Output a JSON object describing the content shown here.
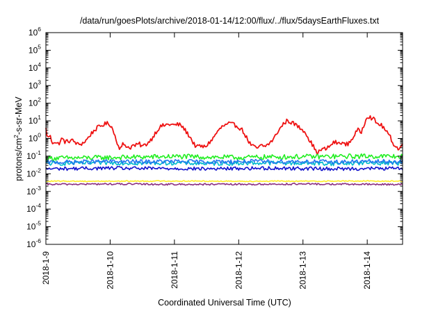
{
  "chart_data": {
    "type": "line",
    "title": "/data/run/goesPlots/archive/2018-01-14/12:00/flux/../flux/5daysEarthFluxes.txt",
    "xlabel": "Coordinated Universal Time (UTC)",
    "ylabel_prefix": "protons/cm",
    "ylabel_sup": "2",
    "ylabel_suffix": "-s-sr-MeV",
    "y_scale": "log",
    "ylim_exp": [
      -6,
      6
    ],
    "y_ticks": [
      {
        "base": "10",
        "exp": "6"
      },
      {
        "base": "10",
        "exp": "5"
      },
      {
        "base": "10",
        "exp": "4"
      },
      {
        "base": "10",
        "exp": "3"
      },
      {
        "base": "10",
        "exp": "2"
      },
      {
        "base": "10",
        "exp": "1"
      },
      {
        "base": "10",
        "exp": "0"
      },
      {
        "base": "10",
        "exp": "-1"
      },
      {
        "base": "10",
        "exp": "-2"
      },
      {
        "base": "10",
        "exp": "-3"
      },
      {
        "base": "10",
        "exp": "-4"
      },
      {
        "base": "10",
        "exp": "-5"
      },
      {
        "base": "10",
        "exp": "-6"
      }
    ],
    "xlim_days": [
      0,
      5.55
    ],
    "x_ticks": [
      {
        "label": "2018-1-9",
        "day": 0
      },
      {
        "label": "2018-1-10",
        "day": 1
      },
      {
        "label": "2018-1-11",
        "day": 2
      },
      {
        "label": "2018-1-12",
        "day": 3
      },
      {
        "label": "2018-1-13",
        "day": 4
      },
      {
        "label": "2018-1-14",
        "day": 5
      }
    ],
    "grid": false,
    "legend": "none",
    "series": [
      {
        "color": "#ee1111",
        "noise": 0.12,
        "x": [
          0,
          0.03,
          0.06,
          0.1,
          0.13,
          0.17,
          0.2,
          0.25,
          0.3,
          0.35,
          0.4,
          0.45,
          0.5,
          0.55,
          0.6,
          0.65,
          0.7,
          0.75,
          0.8,
          0.85,
          0.9,
          0.95,
          1.0,
          1.03,
          1.06,
          1.1,
          1.13,
          1.17,
          1.2,
          1.25,
          1.3,
          1.35,
          1.4,
          1.45,
          1.5,
          1.55,
          1.6,
          1.65,
          1.7,
          1.75,
          1.8,
          1.85,
          1.9,
          1.95,
          2.0,
          2.05,
          2.1,
          2.15,
          2.2,
          2.25,
          2.3,
          2.35,
          2.4,
          2.45,
          2.5,
          2.55,
          2.6,
          2.65,
          2.7,
          2.75,
          2.8,
          2.85,
          2.9,
          2.95,
          3.0,
          3.05,
          3.1,
          3.15,
          3.2,
          3.25,
          3.3,
          3.35,
          3.4,
          3.45,
          3.5,
          3.55,
          3.6,
          3.65,
          3.7,
          3.75,
          3.8,
          3.85,
          3.9,
          3.95,
          4.0,
          4.05,
          4.1,
          4.15,
          4.2,
          4.25,
          4.3,
          4.35,
          4.4,
          4.45,
          4.5,
          4.55,
          4.6,
          4.65,
          4.7,
          4.75,
          4.8,
          4.85,
          4.9,
          4.95,
          5.0,
          5.05,
          5.1,
          5.15,
          5.2,
          5.25,
          5.3,
          5.35,
          5.4,
          5.45,
          5.5,
          5.55
        ],
        "y_exp": [
          0.55,
          0.0,
          0.2,
          -0.25,
          -0.15,
          -0.3,
          -0.3,
          0.0,
          -0.2,
          -0.15,
          -0.1,
          -0.2,
          -0.35,
          -0.3,
          -0.2,
          0.0,
          0.25,
          0.45,
          0.6,
          0.7,
          0.8,
          0.85,
          0.8,
          0.6,
          0.3,
          -0.1,
          -0.45,
          -0.6,
          -0.3,
          -0.4,
          -0.55,
          -0.4,
          -0.4,
          -0.3,
          -0.45,
          -0.35,
          -0.2,
          0.0,
          0.3,
          0.55,
          0.7,
          0.75,
          0.8,
          0.8,
          0.75,
          0.8,
          0.75,
          0.55,
          0.3,
          0.05,
          -0.3,
          -0.5,
          -0.4,
          -0.5,
          -0.4,
          -0.2,
          0.0,
          0.3,
          0.5,
          0.7,
          0.75,
          0.85,
          0.8,
          0.75,
          0.65,
          0.5,
          0.2,
          -0.15,
          -0.4,
          -0.5,
          -0.55,
          -0.4,
          -0.45,
          -0.35,
          -0.2,
          0.0,
          0.35,
          0.6,
          0.85,
          1.0,
          0.95,
          0.85,
          0.75,
          0.6,
          0.5,
          0.3,
          -0.1,
          -0.35,
          -0.75,
          -0.75,
          -0.6,
          -0.6,
          -0.5,
          -0.3,
          -0.2,
          -0.3,
          -0.2,
          -0.35,
          -0.3,
          -0.1,
          0.2,
          0.5,
          0.3,
          0.8,
          1.3,
          1.2,
          1.1,
          0.85,
          0.8,
          0.65,
          0.35,
          0.15,
          -0.25,
          -0.5,
          -0.6,
          -0.3
        ]
      },
      {
        "color": "#22ee22",
        "noise": 0.14,
        "x": [
          0,
          0.5,
          1.0,
          1.5,
          2.0,
          2.5,
          3.0,
          3.5,
          4.0,
          4.5,
          5.0,
          5.55
        ],
        "y_exp": [
          -1.12,
          -1.1,
          -1.08,
          -1.05,
          -1.02,
          -1.05,
          -1.08,
          -1.05,
          -1.03,
          -1.02,
          -1.0,
          -1.02
        ]
      },
      {
        "color": "#00bbcc",
        "noise": 0.12,
        "x": [
          0,
          0.5,
          1.0,
          1.5,
          2.0,
          2.5,
          3.0,
          3.5,
          4.0,
          4.5,
          5.0,
          5.55
        ],
        "y_exp": [
          -1.42,
          -1.4,
          -1.38,
          -1.4,
          -1.38,
          -1.42,
          -1.4,
          -1.38,
          -1.4,
          -1.42,
          -1.38,
          -1.4
        ]
      },
      {
        "color": "#2277ee",
        "noise": 0.12,
        "x": [
          0,
          0.5,
          1.0,
          1.5,
          2.0,
          2.5,
          3.0,
          3.5,
          4.0,
          4.5,
          5.0,
          5.55
        ],
        "y_exp": [
          -1.35,
          -1.33,
          -1.3,
          -1.32,
          -1.3,
          -1.33,
          -1.3,
          -1.31,
          -1.3,
          -1.33,
          -1.3,
          -1.32
        ]
      },
      {
        "color": "#1111cc",
        "noise": 0.1,
        "x": [
          0,
          0.5,
          1.0,
          1.5,
          2.0,
          2.5,
          3.0,
          3.5,
          4.0,
          4.5,
          5.0,
          5.55
        ],
        "y_exp": [
          -1.72,
          -1.7,
          -1.68,
          -1.7,
          -1.7,
          -1.72,
          -1.7,
          -1.68,
          -1.7,
          -1.72,
          -1.7,
          -1.7
        ]
      },
      {
        "color": "#ffee22",
        "noise": 0.03,
        "x": [
          0,
          1.0,
          2.0,
          3.0,
          4.0,
          5.0,
          5.55
        ],
        "y_exp": [
          -2.42,
          -2.42,
          -2.41,
          -2.42,
          -2.42,
          -2.41,
          -2.42
        ]
      },
      {
        "color": "#8b2f80",
        "noise": 0.05,
        "x": [
          0,
          1.0,
          2.0,
          3.0,
          4.0,
          5.0,
          5.55
        ],
        "y_exp": [
          -2.6,
          -2.58,
          -2.6,
          -2.6,
          -2.58,
          -2.6,
          -2.6
        ]
      }
    ]
  }
}
